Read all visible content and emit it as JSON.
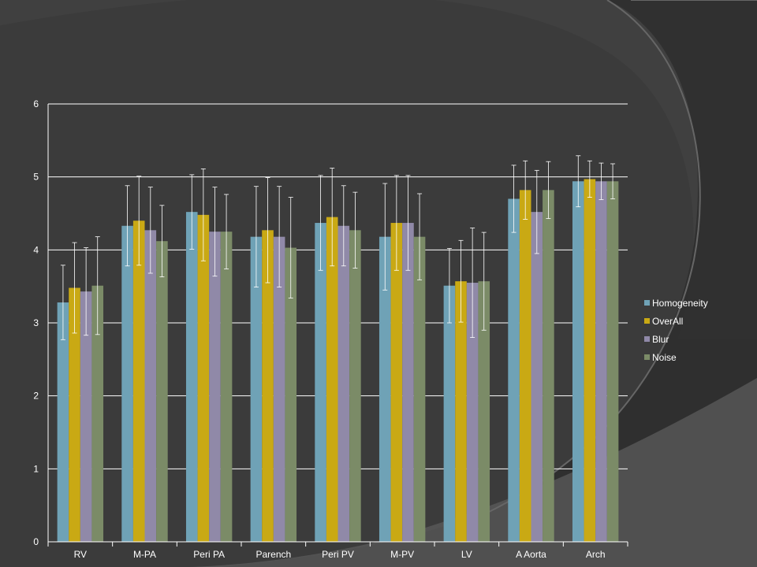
{
  "colors": {
    "background": "#3b3b3b",
    "background_arc_dark": "#2e2e2e",
    "background_arc_light": "#6a6a6a",
    "grid": "#ffffff",
    "text": "#ffffff",
    "error_bar": "#ffffff"
  },
  "chart_data": {
    "type": "bar",
    "categories": [
      "RV",
      "M-PA",
      "Peri PA",
      "Parench",
      "Peri PV",
      "M-PV",
      "LV",
      "A Aorta",
      "Arch"
    ],
    "series": [
      {
        "name": "Homogeneity",
        "color": "#6fa2b6",
        "values": [
          3.28,
          4.33,
          4.52,
          4.18,
          4.37,
          4.18,
          3.51,
          4.7,
          4.94
        ],
        "errors": [
          0.51,
          0.55,
          0.51,
          0.69,
          0.65,
          0.73,
          0.51,
          0.46,
          0.35
        ]
      },
      {
        "name": "OverAll",
        "color": "#c9a914",
        "values": [
          3.48,
          4.4,
          4.48,
          4.27,
          4.45,
          4.37,
          3.57,
          4.82,
          4.97
        ],
        "errors": [
          0.62,
          0.61,
          0.63,
          0.72,
          0.67,
          0.65,
          0.56,
          0.4,
          0.25
        ]
      },
      {
        "name": "Blur",
        "color": "#9089a8",
        "values": [
          3.43,
          4.27,
          4.25,
          4.18,
          4.33,
          4.37,
          3.55,
          4.52,
          4.94
        ],
        "errors": [
          0.6,
          0.59,
          0.61,
          0.69,
          0.55,
          0.65,
          0.75,
          0.57,
          0.25
        ]
      },
      {
        "name": "Noise",
        "color": "#7b8b67",
        "values": [
          3.51,
          4.12,
          4.25,
          4.03,
          4.27,
          4.18,
          3.57,
          4.82,
          4.94
        ],
        "errors": [
          0.67,
          0.49,
          0.51,
          0.69,
          0.52,
          0.59,
          0.67,
          0.39,
          0.24
        ]
      }
    ],
    "y_ticks": [
      "0",
      "1",
      "2",
      "3",
      "4",
      "5",
      "6"
    ],
    "ylim": [
      0,
      6
    ],
    "grid": true,
    "legend_position": "right",
    "error_bars": true
  }
}
